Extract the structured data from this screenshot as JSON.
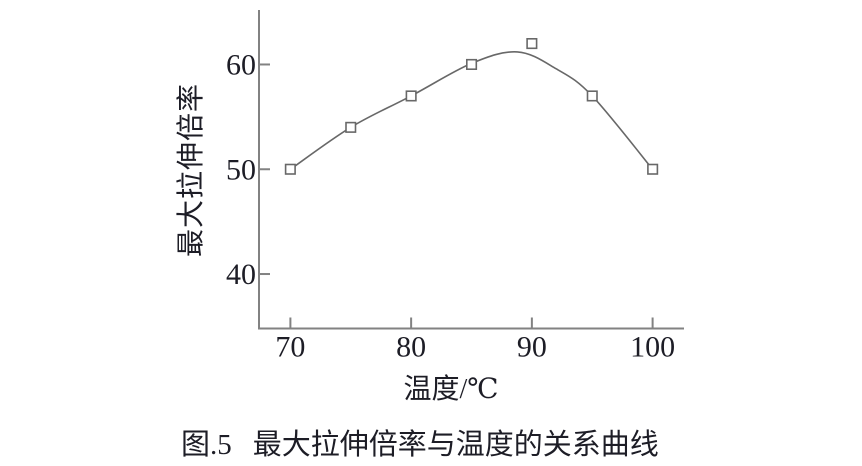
{
  "chart_data": {
    "type": "line",
    "series": [
      {
        "name": "最大拉伸倍率",
        "x": [
          70,
          75,
          80,
          85,
          90,
          95,
          100
        ],
        "y": [
          50,
          54,
          57,
          60,
          62,
          57,
          50
        ]
      }
    ],
    "curve_fit_points": [
      [
        70,
        50
      ],
      [
        75,
        54
      ],
      [
        80,
        57
      ],
      [
        85,
        60.1
      ],
      [
        88.8,
        61.2
      ],
      [
        92,
        59.6
      ],
      [
        95,
        57
      ],
      [
        100,
        50
      ]
    ],
    "xlabel": "温度/℃",
    "ylabel": "最大拉伸倍率",
    "caption_number": "图.5",
    "caption_text": "最大拉伸倍率与温度的关系曲线",
    "x_ticks": [
      70,
      80,
      90,
      100
    ],
    "y_ticks": [
      40,
      50,
      60
    ],
    "xlim": [
      67.4,
      102.6
    ],
    "ylim": [
      34.8,
      65.2
    ],
    "grid": false,
    "legend": "none",
    "marker": "open-square",
    "colors": {
      "axis": "#828282",
      "curve": "#686868",
      "marker_stroke": "#686868",
      "marker_fill": "#ffffff",
      "text": "#1d1d26",
      "background": "#ffffff"
    }
  }
}
